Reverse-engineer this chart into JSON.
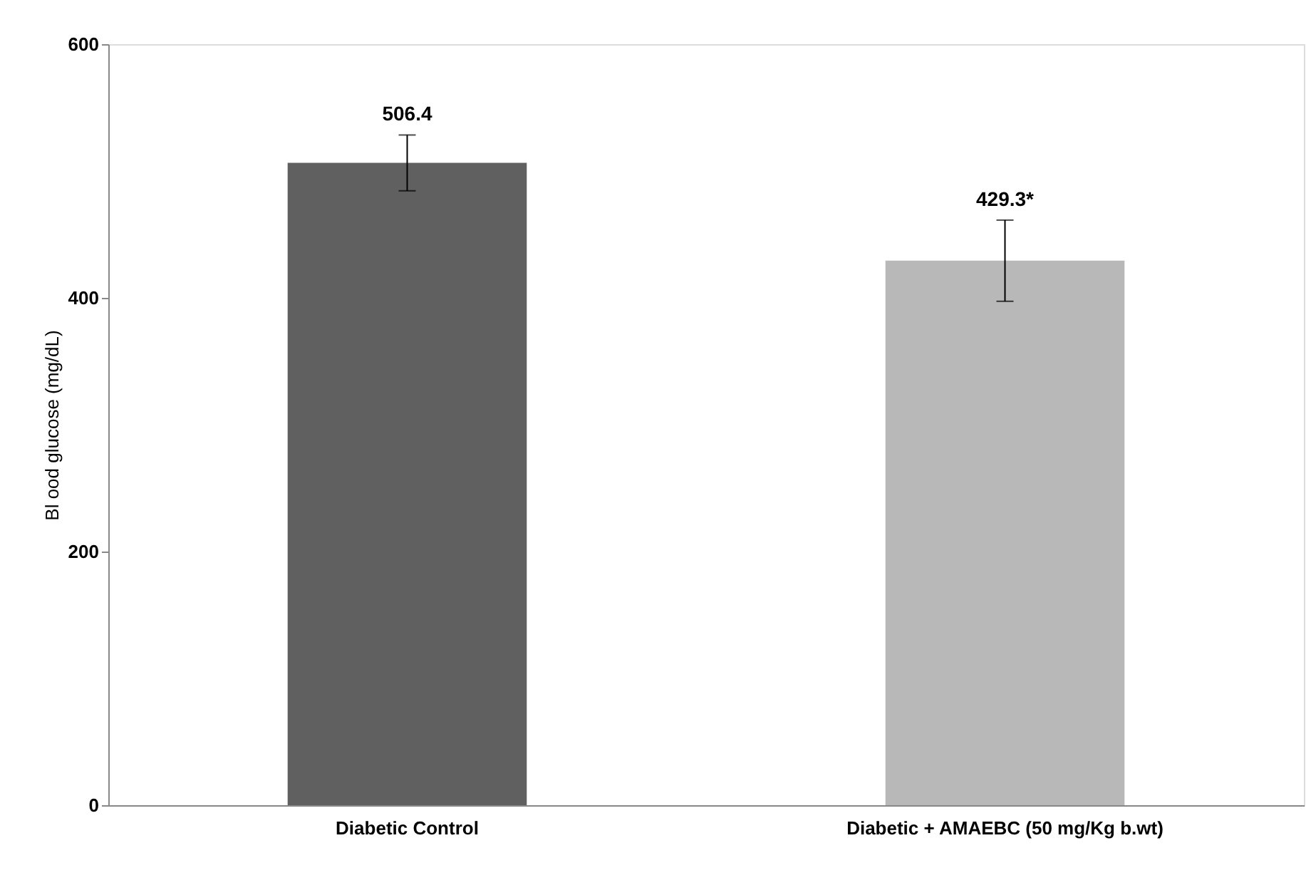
{
  "chart_data": {
    "type": "bar",
    "ylabel": "Bl ood glucose (mg/dL)",
    "categories": [
      "Diabetic Control",
      "Diabetic + AMAEBC (50 mg/Kg b.wt)"
    ],
    "values": [
      506.4,
      429.3
    ],
    "colors": [
      "#606060",
      "#b8b8b8"
    ],
    "errors": [
      22,
      32
    ],
    "value_labels": [
      "506.4",
      "429.3*"
    ],
    "ylim": [
      0,
      600
    ],
    "yticks": [
      0,
      200,
      400,
      600
    ],
    "grid": false
  }
}
